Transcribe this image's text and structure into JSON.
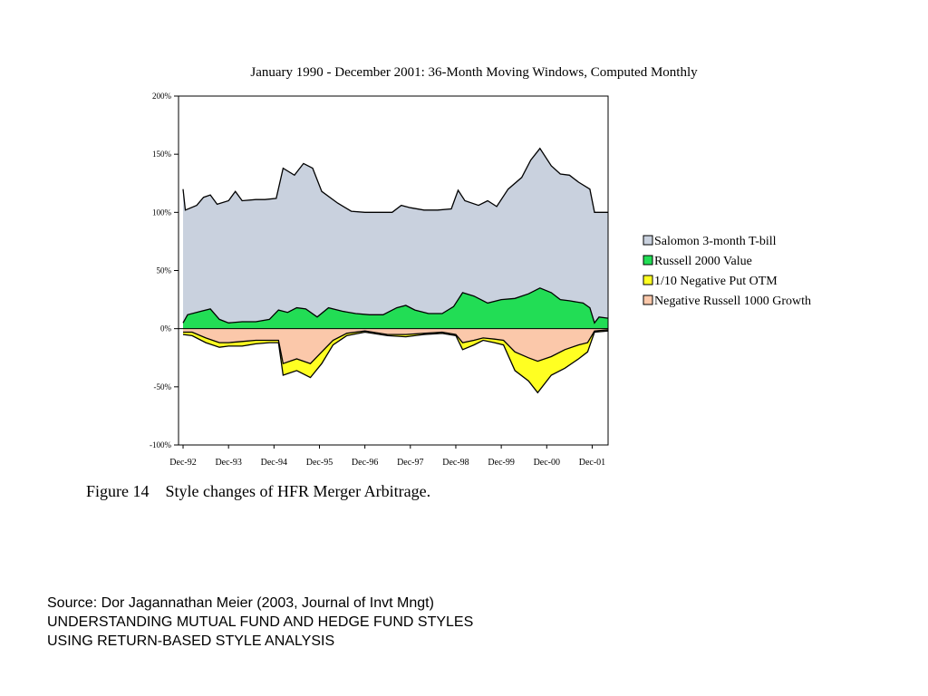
{
  "chart_data": {
    "type": "area",
    "title": "January 1990 - December 2001: 36-Month Moving Windows, Computed Monthly",
    "xlabel": "",
    "ylabel": "",
    "x": [
      "Dec-92",
      "Dec-93",
      "Dec-94",
      "Dec-95",
      "Dec-96",
      "Dec-97",
      "Dec-98",
      "Dec-99",
      "Dec-00",
      "Dec-01"
    ],
    "yticks": [
      "200%",
      "150%",
      "100%",
      "50%",
      "0%",
      "-50%",
      "-100%"
    ],
    "ylim": [
      -100,
      200
    ],
    "grid": false,
    "legend_position": "right",
    "stacking": "positive series stack upward from 0%, negative series stack downward from 0%",
    "series": [
      {
        "name": "Salomon 3-month T-bill",
        "color": "#c9d1de",
        "points": [
          [
            0,
            120
          ],
          [
            0.05,
            102
          ],
          [
            0.3,
            106
          ],
          [
            0.45,
            113
          ],
          [
            0.6,
            115
          ],
          [
            0.75,
            107
          ],
          [
            1.0,
            110
          ],
          [
            1.15,
            118
          ],
          [
            1.3,
            110
          ],
          [
            1.6,
            111
          ],
          [
            1.8,
            111
          ],
          [
            2.05,
            112
          ],
          [
            2.2,
            138
          ],
          [
            2.45,
            132
          ],
          [
            2.65,
            142
          ],
          [
            2.85,
            138
          ],
          [
            3.05,
            118
          ],
          [
            3.4,
            108
          ],
          [
            3.7,
            101
          ],
          [
            4.0,
            100
          ],
          [
            4.3,
            100
          ],
          [
            4.6,
            100
          ],
          [
            4.8,
            106
          ],
          [
            5.0,
            104
          ],
          [
            5.3,
            102
          ],
          [
            5.6,
            102
          ],
          [
            5.9,
            103
          ],
          [
            6.05,
            119
          ],
          [
            6.2,
            110
          ],
          [
            6.5,
            106
          ],
          [
            6.7,
            110
          ],
          [
            6.9,
            105
          ],
          [
            7.15,
            120
          ],
          [
            7.45,
            130
          ],
          [
            7.65,
            145
          ],
          [
            7.85,
            155
          ],
          [
            8.1,
            140
          ],
          [
            8.3,
            133
          ],
          [
            8.5,
            132
          ],
          [
            8.7,
            126
          ],
          [
            8.95,
            120
          ],
          [
            9.05,
            100
          ],
          [
            9.35,
            100
          ]
        ]
      },
      {
        "name": "Russell 2000 Value",
        "color": "#22dd55",
        "points": [
          [
            0,
            5
          ],
          [
            0.1,
            12
          ],
          [
            0.4,
            15
          ],
          [
            0.6,
            17
          ],
          [
            0.8,
            8
          ],
          [
            1.0,
            5
          ],
          [
            1.3,
            6
          ],
          [
            1.6,
            6
          ],
          [
            1.9,
            8
          ],
          [
            2.1,
            16
          ],
          [
            2.3,
            14
          ],
          [
            2.5,
            18
          ],
          [
            2.7,
            17
          ],
          [
            2.95,
            10
          ],
          [
            3.2,
            18
          ],
          [
            3.5,
            15
          ],
          [
            3.8,
            13
          ],
          [
            4.1,
            12
          ],
          [
            4.4,
            12
          ],
          [
            4.7,
            18
          ],
          [
            4.9,
            20
          ],
          [
            5.1,
            16
          ],
          [
            5.4,
            13
          ],
          [
            5.7,
            13
          ],
          [
            5.95,
            19
          ],
          [
            6.15,
            31
          ],
          [
            6.4,
            28
          ],
          [
            6.7,
            22
          ],
          [
            7.0,
            25
          ],
          [
            7.3,
            26
          ],
          [
            7.6,
            30
          ],
          [
            7.85,
            35
          ],
          [
            8.1,
            31
          ],
          [
            8.3,
            25
          ],
          [
            8.5,
            24
          ],
          [
            8.8,
            22
          ],
          [
            8.95,
            18
          ],
          [
            9.05,
            5
          ],
          [
            9.15,
            10
          ],
          [
            9.35,
            9
          ]
        ]
      },
      {
        "name": "Negative Russell 1000 Growth",
        "color": "#fbc8aa",
        "points": [
          [
            0,
            -3
          ],
          [
            0.2,
            -3
          ],
          [
            0.5,
            -8
          ],
          [
            0.8,
            -12
          ],
          [
            1.0,
            -12
          ],
          [
            1.3,
            -11
          ],
          [
            1.6,
            -10
          ],
          [
            1.9,
            -10
          ],
          [
            2.1,
            -10
          ],
          [
            2.2,
            -30
          ],
          [
            2.5,
            -26
          ],
          [
            2.8,
            -30
          ],
          [
            3.05,
            -20
          ],
          [
            3.3,
            -10
          ],
          [
            3.6,
            -4
          ],
          [
            4.0,
            -2
          ],
          [
            4.5,
            -5
          ],
          [
            4.9,
            -5
          ],
          [
            5.3,
            -4
          ],
          [
            5.7,
            -3
          ],
          [
            6.0,
            -5
          ],
          [
            6.15,
            -12
          ],
          [
            6.4,
            -10
          ],
          [
            6.6,
            -8
          ],
          [
            6.85,
            -9
          ],
          [
            7.05,
            -10
          ],
          [
            7.3,
            -20
          ],
          [
            7.6,
            -25
          ],
          [
            7.8,
            -28
          ],
          [
            8.1,
            -24
          ],
          [
            8.4,
            -18
          ],
          [
            8.7,
            -14
          ],
          [
            8.9,
            -12
          ],
          [
            9.05,
            -2
          ],
          [
            9.35,
            -1
          ]
        ]
      },
      {
        "name": "1/10 Negative Put OTM",
        "color": "#ffff22",
        "points": [
          [
            0,
            -5
          ],
          [
            0.2,
            -6
          ],
          [
            0.5,
            -12
          ],
          [
            0.8,
            -16
          ],
          [
            1.0,
            -15
          ],
          [
            1.3,
            -15
          ],
          [
            1.6,
            -13
          ],
          [
            1.9,
            -12
          ],
          [
            2.1,
            -12
          ],
          [
            2.2,
            -40
          ],
          [
            2.5,
            -36
          ],
          [
            2.8,
            -42
          ],
          [
            3.05,
            -30
          ],
          [
            3.3,
            -14
          ],
          [
            3.6,
            -6
          ],
          [
            4.0,
            -3
          ],
          [
            4.5,
            -6
          ],
          [
            4.9,
            -7
          ],
          [
            5.3,
            -5
          ],
          [
            5.7,
            -4
          ],
          [
            6.0,
            -6
          ],
          [
            6.15,
            -18
          ],
          [
            6.4,
            -14
          ],
          [
            6.6,
            -10
          ],
          [
            6.85,
            -12
          ],
          [
            7.05,
            -14
          ],
          [
            7.3,
            -36
          ],
          [
            7.6,
            -45
          ],
          [
            7.8,
            -55
          ],
          [
            8.1,
            -40
          ],
          [
            8.4,
            -34
          ],
          [
            8.7,
            -26
          ],
          [
            8.9,
            -20
          ],
          [
            9.05,
            -3
          ],
          [
            9.35,
            -2
          ]
        ]
      }
    ],
    "legend": [
      {
        "label": "Salomon 3-month T-bill",
        "color": "#c9d1de"
      },
      {
        "label": "Russell 2000 Value",
        "color": "#22dd55"
      },
      {
        "label": "1/10 Negative Put OTM",
        "color": "#ffff22"
      },
      {
        "label": "Negative Russell 1000 Growth",
        "color": "#fbc8aa"
      }
    ]
  },
  "figure_caption": "Figure 14    Style changes of HFR Merger Arbitrage.",
  "source": {
    "line1": "Source: Dor Jagannathan Meier (2003, Journal of Invt Mngt)",
    "line2": "UNDERSTANDING MUTUAL FUND AND HEDGE FUND STYLES",
    "line3": "USING RETURN-BASED STYLE ANALYSIS"
  }
}
